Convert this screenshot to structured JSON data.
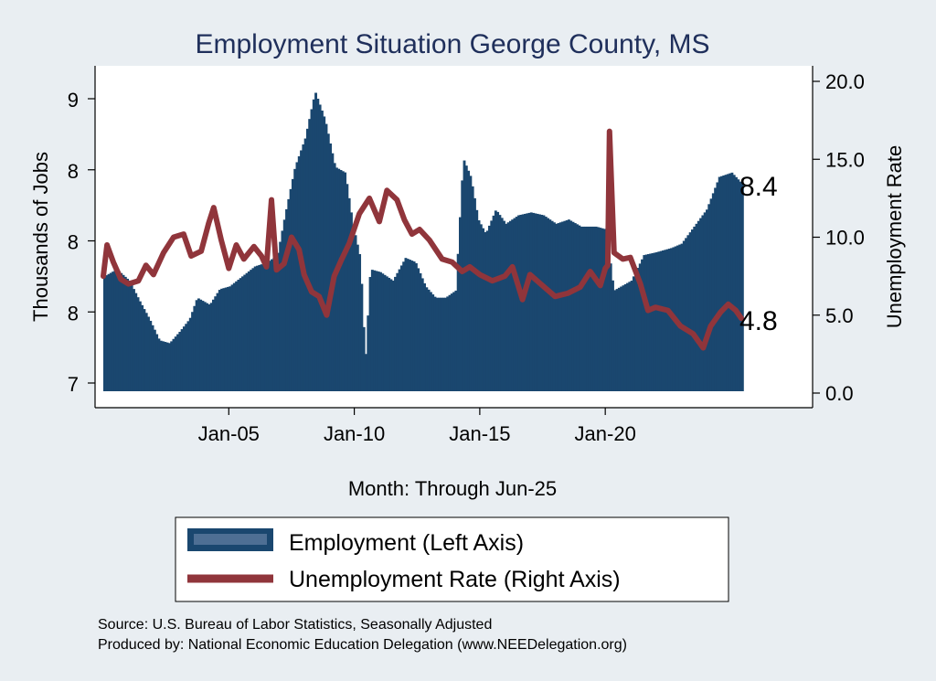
{
  "chart_data": {
    "type": "bar+line",
    "title": "Employment Situation George  County, MS",
    "xlabel": "Month: Through Jun-25",
    "ylabel_left": "Thousands of Jobs",
    "ylabel_right": "Unemployment Rate",
    "x_range": [
      "Jan-00",
      "Jun-25"
    ],
    "ylim_left": [
      6.9,
      9.2
    ],
    "ylim_right": [
      0.0,
      20.0
    ],
    "x_ticks": [
      "Jan-05",
      "Jan-10",
      "Jan-15",
      "Jan-20"
    ],
    "y_ticks_left": [
      {
        "label": "7",
        "value": 7.0
      },
      {
        "label": "8",
        "value": 7.5
      },
      {
        "label": "8",
        "value": 8.0
      },
      {
        "label": "8",
        "value": 8.5
      },
      {
        "label": "9",
        "value": 9.0
      }
    ],
    "y_ticks_right": [
      "0.0",
      "5.0",
      "10.0",
      "15.0",
      "20.0"
    ],
    "series": [
      {
        "name": "Employment (Left Axis)",
        "kind": "bar",
        "color": "#1a476f",
        "end_label": "8.4",
        "points": [
          [
            2000.0,
            7.75
          ],
          [
            2000.5,
            7.8
          ],
          [
            2001.0,
            7.72
          ],
          [
            2001.4,
            7.58
          ],
          [
            2001.8,
            7.45
          ],
          [
            2002.2,
            7.3
          ],
          [
            2002.6,
            7.28
          ],
          [
            2003.0,
            7.36
          ],
          [
            2003.4,
            7.45
          ],
          [
            2003.7,
            7.6
          ],
          [
            2004.2,
            7.55
          ],
          [
            2004.6,
            7.66
          ],
          [
            2005.0,
            7.68
          ],
          [
            2005.5,
            7.75
          ],
          [
            2006.0,
            7.82
          ],
          [
            2006.5,
            7.85
          ],
          [
            2006.9,
            7.9
          ],
          [
            2007.2,
            8.18
          ],
          [
            2007.6,
            8.52
          ],
          [
            2008.0,
            8.72
          ],
          [
            2008.4,
            9.05
          ],
          [
            2008.8,
            8.85
          ],
          [
            2009.2,
            8.52
          ],
          [
            2009.6,
            8.48
          ],
          [
            2009.9,
            8.12
          ],
          [
            2010.2,
            7.88
          ],
          [
            2010.4,
            7.15
          ],
          [
            2010.6,
            7.8
          ],
          [
            2011.0,
            7.78
          ],
          [
            2011.5,
            7.72
          ],
          [
            2012.0,
            7.88
          ],
          [
            2012.4,
            7.85
          ],
          [
            2012.8,
            7.68
          ],
          [
            2013.2,
            7.6
          ],
          [
            2013.6,
            7.6
          ],
          [
            2014.0,
            7.65
          ],
          [
            2014.3,
            8.58
          ],
          [
            2014.6,
            8.45
          ],
          [
            2014.9,
            8.15
          ],
          [
            2015.2,
            8.05
          ],
          [
            2015.6,
            8.22
          ],
          [
            2016.0,
            8.12
          ],
          [
            2016.5,
            8.18
          ],
          [
            2017.0,
            8.2
          ],
          [
            2017.5,
            8.18
          ],
          [
            2018.0,
            8.12
          ],
          [
            2018.5,
            8.15
          ],
          [
            2019.0,
            8.1
          ],
          [
            2019.6,
            8.1
          ],
          [
            2020.0,
            8.08
          ],
          [
            2020.3,
            7.65
          ],
          [
            2020.6,
            7.68
          ],
          [
            2021.0,
            7.72
          ],
          [
            2021.5,
            7.9
          ],
          [
            2022.0,
            7.92
          ],
          [
            2022.6,
            7.95
          ],
          [
            2023.0,
            7.98
          ],
          [
            2023.5,
            8.1
          ],
          [
            2024.0,
            8.22
          ],
          [
            2024.5,
            8.45
          ],
          [
            2025.0,
            8.48
          ],
          [
            2025.42,
            8.4
          ]
        ]
      },
      {
        "name": "Unemployment Rate (Right Axis)",
        "kind": "line",
        "color": "#90353b",
        "end_label": "4.8",
        "points": [
          [
            2000.0,
            7.5
          ],
          [
            2000.15,
            9.5
          ],
          [
            2000.4,
            8.4
          ],
          [
            2000.7,
            7.3
          ],
          [
            2001.0,
            7.0
          ],
          [
            2001.4,
            7.2
          ],
          [
            2001.7,
            8.2
          ],
          [
            2002.0,
            7.6
          ],
          [
            2002.4,
            9.0
          ],
          [
            2002.8,
            10.0
          ],
          [
            2003.2,
            10.2
          ],
          [
            2003.5,
            8.8
          ],
          [
            2003.9,
            9.1
          ],
          [
            2004.2,
            10.9
          ],
          [
            2004.4,
            11.9
          ],
          [
            2004.7,
            9.8
          ],
          [
            2005.0,
            8.0
          ],
          [
            2005.3,
            9.5
          ],
          [
            2005.6,
            8.6
          ],
          [
            2006.0,
            9.4
          ],
          [
            2006.3,
            8.8
          ],
          [
            2006.5,
            8.1
          ],
          [
            2006.7,
            12.4
          ],
          [
            2006.9,
            7.9
          ],
          [
            2007.2,
            8.3
          ],
          [
            2007.5,
            10.0
          ],
          [
            2007.8,
            9.2
          ],
          [
            2008.0,
            7.6
          ],
          [
            2008.3,
            6.5
          ],
          [
            2008.6,
            6.2
          ],
          [
            2008.9,
            5.0
          ],
          [
            2009.2,
            7.5
          ],
          [
            2009.5,
            8.6
          ],
          [
            2009.8,
            9.6
          ],
          [
            2010.2,
            11.5
          ],
          [
            2010.6,
            12.5
          ],
          [
            2011.0,
            11.0
          ],
          [
            2011.3,
            13.0
          ],
          [
            2011.7,
            12.4
          ],
          [
            2012.0,
            11.1
          ],
          [
            2012.3,
            10.2
          ],
          [
            2012.6,
            10.5
          ],
          [
            2013.0,
            9.8
          ],
          [
            2013.5,
            8.6
          ],
          [
            2013.9,
            8.4
          ],
          [
            2014.3,
            7.8
          ],
          [
            2014.6,
            8.1
          ],
          [
            2015.0,
            7.6
          ],
          [
            2015.5,
            7.2
          ],
          [
            2016.0,
            7.5
          ],
          [
            2016.3,
            8.1
          ],
          [
            2016.7,
            6.0
          ],
          [
            2017.0,
            7.6
          ],
          [
            2017.5,
            6.9
          ],
          [
            2018.0,
            6.2
          ],
          [
            2018.5,
            6.4
          ],
          [
            2019.0,
            6.8
          ],
          [
            2019.4,
            7.8
          ],
          [
            2019.8,
            6.9
          ],
          [
            2020.0,
            8.0
          ],
          [
            2020.1,
            8.2
          ],
          [
            2020.17,
            16.8
          ],
          [
            2020.35,
            9.0
          ],
          [
            2020.7,
            8.6
          ],
          [
            2021.0,
            8.7
          ],
          [
            2021.4,
            7.0
          ],
          [
            2021.7,
            5.3
          ],
          [
            2022.0,
            5.5
          ],
          [
            2022.5,
            5.3
          ],
          [
            2023.0,
            4.3
          ],
          [
            2023.5,
            3.8
          ],
          [
            2023.9,
            2.9
          ],
          [
            2024.2,
            4.3
          ],
          [
            2024.6,
            5.2
          ],
          [
            2024.9,
            5.7
          ],
          [
            2025.2,
            5.3
          ],
          [
            2025.42,
            4.8
          ]
        ]
      }
    ],
    "legend": [
      "Employment (Left Axis)",
      "Unemployment Rate (Right Axis)"
    ]
  },
  "source_lines": [
    "Source: U.S. Bureau of Labor Statistics, Seasonally Adjusted",
    "Produced by: National Economic Education Delegation (www.NEEDelegation.org)"
  ]
}
